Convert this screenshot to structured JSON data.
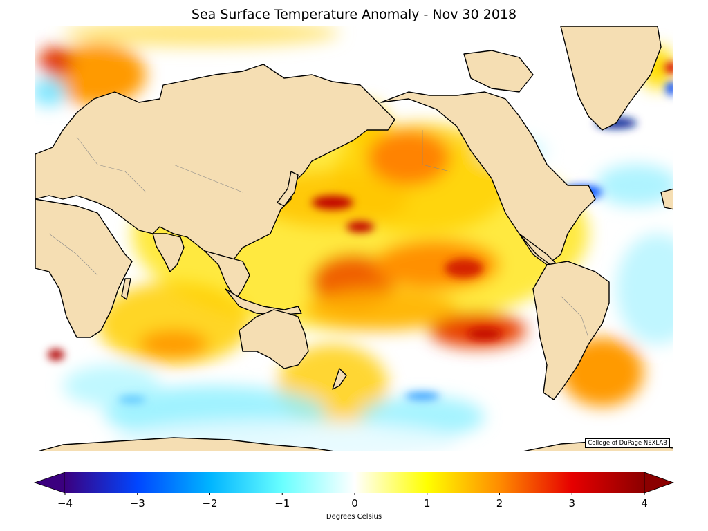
{
  "title": "Sea Surface Temperature Anomaly - Nov 30 2018",
  "credit": "College of DuPage NEXLAB",
  "colorbar": {
    "label": "Degrees Celsius",
    "range": [
      -4,
      4
    ],
    "extend": "both",
    "ticks": [
      "−4",
      "−3",
      "−2",
      "−1",
      "0",
      "1",
      "2",
      "3",
      "4"
    ],
    "tick_values": [
      -4,
      -3,
      -2,
      -1,
      0,
      1,
      2,
      3,
      4
    ],
    "colors": {
      "min": "#3b007f",
      "deep_blue": "#0046ff",
      "cyan": "#69ffff",
      "zero": "#ffffff",
      "yellow": "#ffff00",
      "orange": "#ff8c00",
      "red": "#e60000",
      "max": "#8b0000"
    }
  },
  "map": {
    "projection": "Miller cylindrical, Pacific-centered",
    "land_color": "#f5deb3",
    "coast_color": "#000000",
    "border_color": "#888888"
  }
}
